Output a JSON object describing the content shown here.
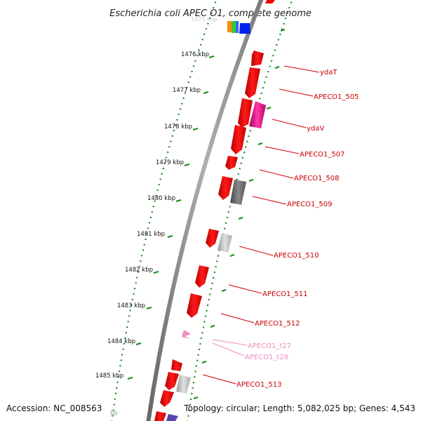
{
  "title": "Escherichia coli APEC O1, complete genome",
  "footer": {
    "accession": "Accession: NC_008563",
    "summary": "Topology: circular; Length: 5,082,025 bp; Genes: 4,543"
  },
  "ticks": [
    {
      "label": "1476 kbp"
    },
    {
      "label": "1477 kbp"
    },
    {
      "label": "1478 kbp"
    },
    {
      "label": "1479 kbp"
    },
    {
      "label": "1480 kbp"
    },
    {
      "label": "1481 kbp"
    },
    {
      "label": "1482 kbp"
    },
    {
      "label": "1483 kbp"
    },
    {
      "label": "1484 kbp"
    },
    {
      "label": "1485 kbp"
    }
  ],
  "gene_labels": [
    {
      "text": "ydaT",
      "color": "#cc0000"
    },
    {
      "text": "APECO1_505",
      "color": "#cc0000"
    },
    {
      "text": "ydaV",
      "color": "#cc0000"
    },
    {
      "text": "APECO1_507",
      "color": "#cc0000"
    },
    {
      "text": "APECO1_508",
      "color": "#cc0000"
    },
    {
      "text": "APECO1_509",
      "color": "#cc0000"
    },
    {
      "text": "APECO1_510",
      "color": "#cc0000"
    },
    {
      "text": "APECO1_511",
      "color": "#cc0000"
    },
    {
      "text": "APECO1_512",
      "color": "#cc0000"
    },
    {
      "text": "APECO1_t27",
      "color": "#f08cc0"
    },
    {
      "text": "APECO1_t28",
      "color": "#f08cc0"
    },
    {
      "text": "APECO1_513",
      "color": "#cc0000"
    }
  ],
  "colors": {
    "backbone": "#888888",
    "tick_dots": "#1a8a1a",
    "gene_red": "#ee0000",
    "gene_magenta": "#ee1199",
    "gene_gray_dark": "#666666",
    "gene_gray_light": "#bbbbbb",
    "trna_pink": "#f08cc0"
  }
}
